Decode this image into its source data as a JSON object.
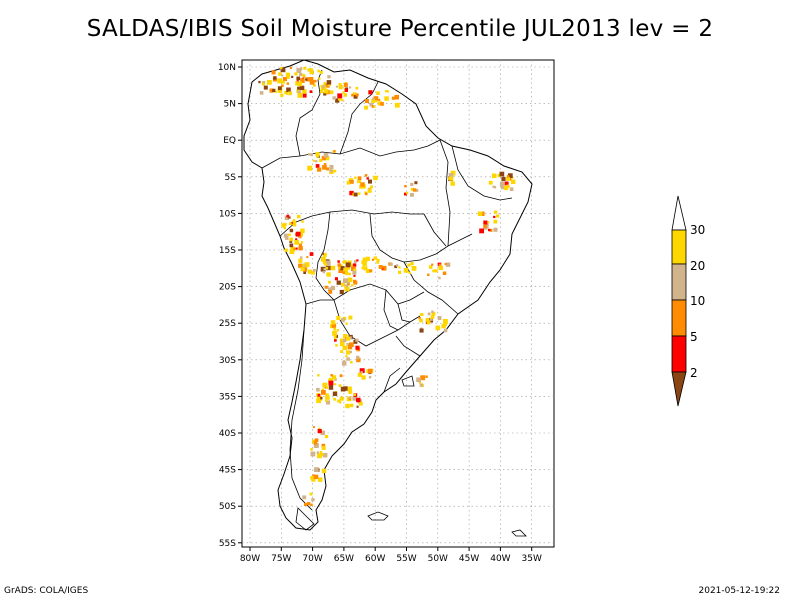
{
  "title": "SALDAS/IBIS Soil Moisture Percentile JUL2013 lev = 2",
  "footer": {
    "left": "GrADS: COLA/IGES",
    "right": "2021-05-12-19:22"
  },
  "axes": {
    "lat_labels": [
      "10N",
      "5N",
      "EQ",
      "5S",
      "10S",
      "15S",
      "20S",
      "25S",
      "30S",
      "35S",
      "40S",
      "45S",
      "50S",
      "55S"
    ],
    "lon_labels": [
      "80W",
      "75W",
      "70W",
      "65W",
      "60W",
      "55W",
      "50W",
      "45W",
      "40W",
      "35W"
    ],
    "grid": true
  },
  "colorbar": {
    "labels": [
      "30",
      "20",
      "10",
      "5",
      "2"
    ],
    "colors": {
      "above_30": "#ffffff",
      "20_30": "#ffd700",
      "10_20": "#d2b48c",
      "5_10": "#ff8c00",
      "2_5": "#ff0000",
      "below_2": "#8b4513"
    }
  }
}
